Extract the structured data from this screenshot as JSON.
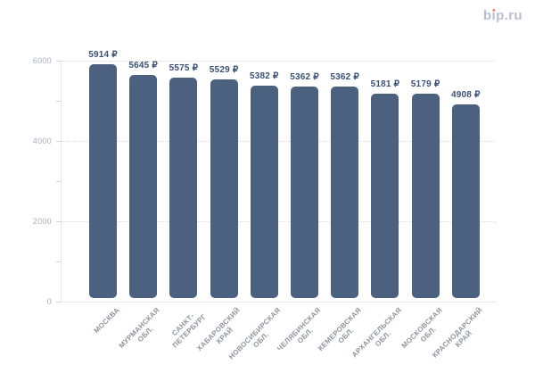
{
  "logo": {
    "text": "bip.ru",
    "color": "#b9bed1",
    "accent_color": "#f0815f"
  },
  "chart_data": {
    "type": "bar",
    "title": "",
    "xlabel": "",
    "ylabel": "",
    "categories": [
      "МОСКВА",
      "МУРМАНСКАЯ\nОБЛ.",
      "САНКТ-\nПЕТЕРБУРГ",
      "ХАБАРОВСКИЙ\nКРАЙ",
      "НОВОСИБИРСКАЯ\nОБЛ.",
      "ЧЕЛЯБИНСКАЯ\nОБЛ.",
      "КЕМЕРОВСКАЯ\nОБЛ.",
      "АРХАНГЕЛЬСКАЯ\nОБЛ.",
      "МОСКОВСКАЯ\nОБЛ.",
      "КРАСНОДАРСКИЙ\nКРАЙ"
    ],
    "values": [
      5914,
      5645,
      5575,
      5529,
      5382,
      5362,
      5362,
      5181,
      5179,
      4908
    ],
    "value_suffix": " ₽",
    "value_labels": [
      "5914 ₽",
      "5645 ₽",
      "5575 ₽",
      "5529 ₽",
      "5382 ₽",
      "5362 ₽",
      "5362 ₽",
      "5181 ₽",
      "5179 ₽",
      "4908 ₽"
    ],
    "ylim": [
      0,
      6000
    ],
    "yticks": [
      0,
      2000,
      4000,
      6000
    ],
    "ytick_labels": [
      "0",
      "2000",
      "4000",
      "6000"
    ],
    "yticks_minor": [
      1000,
      3000,
      5000
    ],
    "grid": "horizontal dotted lines at major y ticks",
    "legend": "none",
    "bar_color": "#4c6080",
    "value_label_color": "#3a5177",
    "category_label_color": "#8e939c",
    "tick_label_color": "#a8aebb"
  }
}
